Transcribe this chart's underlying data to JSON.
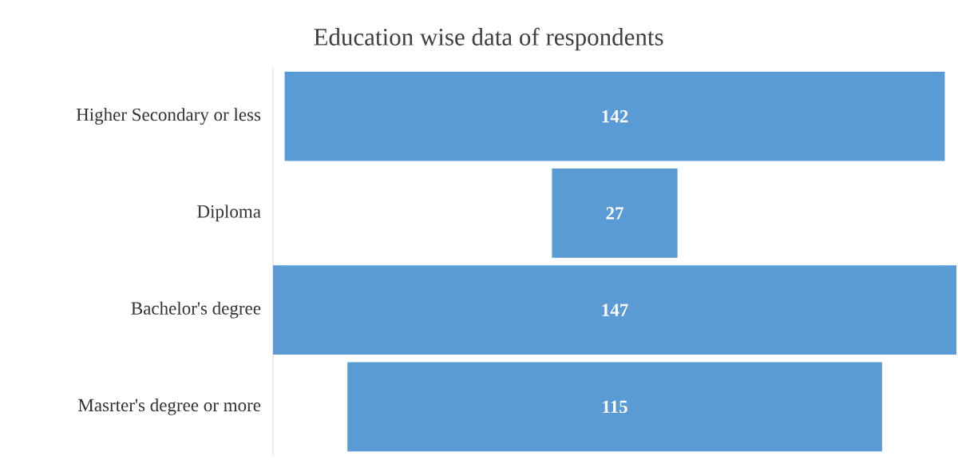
{
  "chart_data": {
    "type": "other",
    "title": "Education wise data of respondents",
    "categories": [
      "Higher Secondary or less",
      "Diploma",
      "Bachelor's degree",
      "Masrter's degree or more"
    ],
    "values": [
      142,
      27,
      147,
      115
    ],
    "color": "#5b9bd5",
    "data_labels": true
  }
}
